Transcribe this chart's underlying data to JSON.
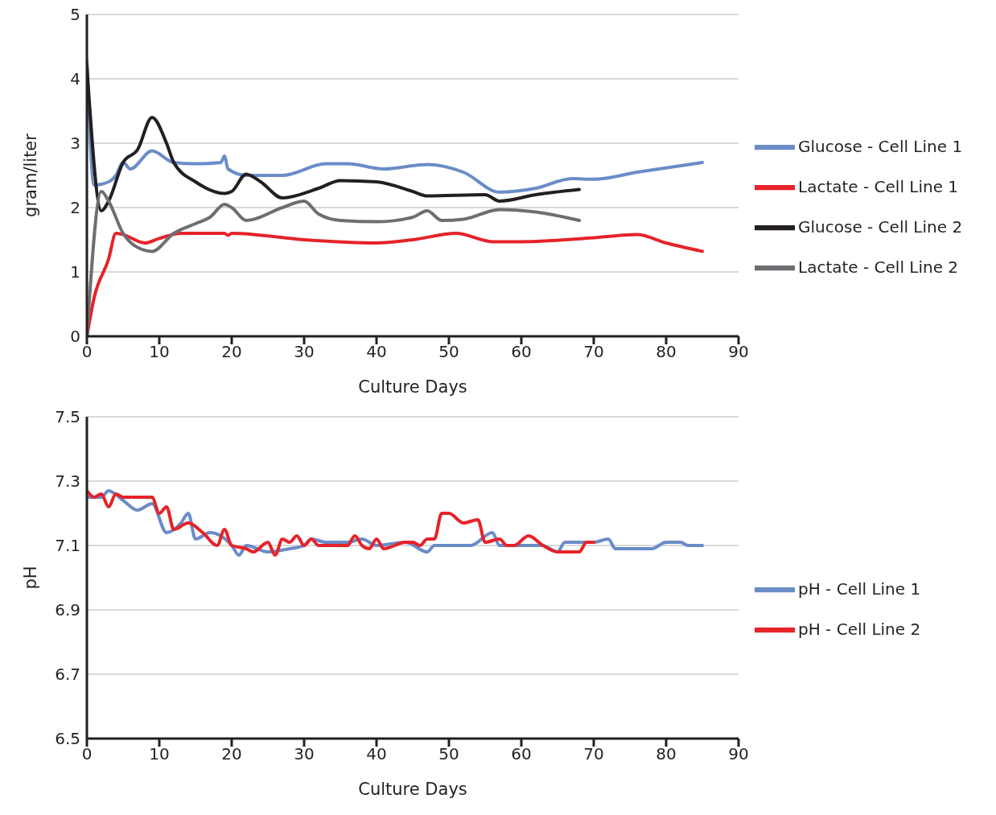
{
  "chart_data": [
    {
      "type": "line",
      "xlabel": "Culture Days",
      "ylabel": "gram/liter",
      "xlim": [
        0,
        90
      ],
      "xticks": [
        0,
        10,
        20,
        30,
        40,
        50,
        60,
        70,
        80,
        90
      ],
      "ylim": [
        0,
        5
      ],
      "yticks": [
        0,
        1,
        2,
        3,
        4,
        5
      ],
      "grid": "y",
      "legend": "right",
      "marker": "none",
      "line_style": "solid",
      "series": [
        {
          "name": "Glucose - Cell Line 1",
          "color": "#6a8cc8",
          "x": [
            0,
            1,
            3,
            4,
            5,
            6,
            9,
            12,
            15,
            18.5,
            19,
            19.5,
            22,
            27,
            33,
            36,
            41,
            47,
            52,
            57,
            62,
            67,
            70,
            76,
            85
          ],
          "values": [
            4.3,
            2.35,
            2.4,
            2.5,
            2.7,
            2.6,
            2.88,
            2.7,
            2.68,
            2.7,
            2.8,
            2.6,
            2.5,
            2.5,
            2.68,
            2.68,
            2.6,
            2.67,
            2.55,
            2.24,
            2.3,
            2.45,
            2.44,
            2.55,
            2.7
          ]
        },
        {
          "name": "Lactate - Cell Line 1",
          "color": "#e52329",
          "x": [
            0,
            1,
            3,
            4,
            5,
            8,
            10,
            13,
            19,
            19.5,
            20,
            30,
            40,
            45,
            51,
            56,
            60,
            70,
            76,
            80,
            85
          ],
          "values": [
            0,
            0.6,
            1.2,
            1.6,
            1.58,
            1.45,
            1.52,
            1.6,
            1.6,
            1.57,
            1.6,
            1.5,
            1.45,
            1.5,
            1.6,
            1.47,
            1.47,
            1.53,
            1.58,
            1.45,
            1.32
          ]
        },
        {
          "name": "Glucose - Cell Line 2",
          "color": "#231f20",
          "x": [
            0,
            2,
            3,
            5,
            7,
            9,
            11,
            12,
            15,
            19,
            20,
            22,
            24,
            27,
            32,
            35,
            40,
            45,
            47,
            55,
            57,
            62,
            68
          ],
          "values": [
            4.2,
            1.95,
            2.1,
            2.7,
            2.9,
            3.4,
            3.0,
            2.7,
            2.4,
            2.22,
            2.25,
            2.52,
            2.4,
            2.15,
            2.3,
            2.42,
            2.4,
            2.25,
            2.18,
            2.2,
            2.1,
            2.2,
            2.28
          ]
        },
        {
          "name": "Lactate - Cell Line 2",
          "color": "#6d6e71",
          "x": [
            0,
            2,
            3,
            5,
            7,
            9,
            12,
            15,
            17,
            19,
            20,
            22,
            27,
            30,
            32,
            35,
            40,
            45,
            47,
            49,
            52,
            57,
            62,
            68
          ],
          "values": [
            0,
            2.25,
            2.1,
            1.6,
            1.38,
            1.32,
            1.6,
            1.75,
            1.85,
            2.05,
            2.0,
            1.8,
            2.0,
            2.1,
            1.9,
            1.8,
            1.78,
            1.85,
            1.95,
            1.8,
            1.82,
            1.97,
            1.93,
            1.8
          ]
        }
      ]
    },
    {
      "type": "line",
      "xlabel": "Culture Days",
      "ylabel": "pH",
      "xlim": [
        0,
        90
      ],
      "xticks": [
        0,
        10,
        20,
        30,
        40,
        50,
        60,
        70,
        80,
        90
      ],
      "ylim": [
        6.5,
        7.5
      ],
      "yticks": [
        {
          "value": 6.5,
          "label": "6.5"
        },
        {
          "value": 6.7,
          "label": "6.7"
        },
        {
          "value": 6.9,
          "label": "6.9"
        },
        {
          "value": 7.1,
          "label": "7.1"
        },
        {
          "value": 7.3,
          "label": "7.3"
        },
        {
          "value": 7.5,
          "label": "7.5"
        }
      ],
      "grid": "y",
      "legend": "right",
      "marker": "none",
      "line_style": "solid",
      "series": [
        {
          "name": "pH - Cell Line 1",
          "color": "#6a8cc8",
          "x": [
            0,
            2,
            3,
            5,
            7,
            9,
            11,
            13,
            14,
            15,
            17,
            20,
            21,
            22,
            25,
            28,
            30,
            31,
            33,
            36,
            38,
            40,
            44,
            47,
            48,
            53,
            56,
            57,
            60,
            63,
            64,
            65,
            66,
            70,
            72,
            73,
            78,
            80,
            82,
            83,
            85
          ],
          "values": [
            7.25,
            7.25,
            7.27,
            7.24,
            7.21,
            7.23,
            7.14,
            7.17,
            7.2,
            7.12,
            7.14,
            7.1,
            7.07,
            7.1,
            7.08,
            7.09,
            7.1,
            7.12,
            7.11,
            7.11,
            7.12,
            7.1,
            7.11,
            7.08,
            7.1,
            7.1,
            7.14,
            7.1,
            7.1,
            7.1,
            7.09,
            7.08,
            7.11,
            7.11,
            7.12,
            7.09,
            7.09,
            7.11,
            7.11,
            7.1,
            7.1
          ]
        },
        {
          "name": "pH - Cell Line 2",
          "color": "#e52329",
          "x": [
            0,
            1,
            2,
            3,
            4,
            5,
            9,
            10,
            11,
            12,
            14,
            16,
            18,
            19,
            20,
            22,
            23,
            25,
            26,
            27,
            28,
            29,
            30,
            31,
            32,
            36,
            37,
            38,
            39,
            40,
            41,
            44,
            45,
            46,
            47,
            48,
            49,
            50,
            52,
            54,
            55,
            57,
            58,
            59,
            61,
            63,
            65,
            68,
            69,
            70
          ],
          "values": [
            7.27,
            7.25,
            7.26,
            7.22,
            7.26,
            7.25,
            7.25,
            7.2,
            7.22,
            7.15,
            7.17,
            7.14,
            7.1,
            7.15,
            7.1,
            7.09,
            7.08,
            7.11,
            7.07,
            7.12,
            7.11,
            7.13,
            7.1,
            7.12,
            7.1,
            7.1,
            7.13,
            7.1,
            7.09,
            7.12,
            7.09,
            7.11,
            7.11,
            7.1,
            7.12,
            7.12,
            7.2,
            7.2,
            7.17,
            7.18,
            7.11,
            7.12,
            7.1,
            7.1,
            7.13,
            7.1,
            7.08,
            7.08,
            7.11,
            7.11
          ]
        }
      ]
    }
  ]
}
